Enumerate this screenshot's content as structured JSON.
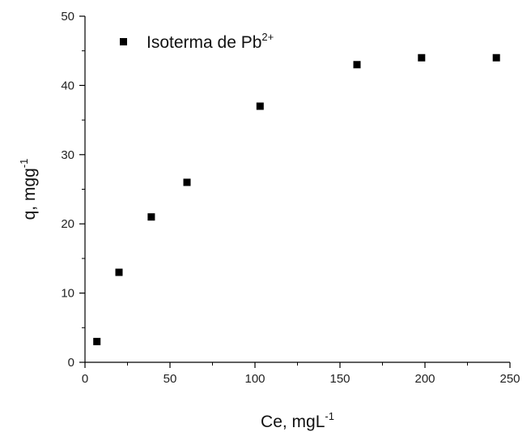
{
  "chart_data": {
    "type": "scatter",
    "series": [
      {
        "name": "Isoterma de Pb",
        "name_superscript": "2+",
        "marker": "square",
        "color": "#000000",
        "points": [
          {
            "x": 7,
            "y": 3
          },
          {
            "x": 20,
            "y": 13
          },
          {
            "x": 39,
            "y": 21
          },
          {
            "x": 60,
            "y": 26
          },
          {
            "x": 103,
            "y": 37
          },
          {
            "x": 160,
            "y": 43
          },
          {
            "x": 198,
            "y": 44
          },
          {
            "x": 242,
            "y": 44
          }
        ]
      }
    ],
    "xlabel": "Ce, mgL",
    "xlabel_superscript": "-1",
    "ylabel": "q, mgg",
    "ylabel_superscript": "-1",
    "xlim": [
      0,
      250
    ],
    "ylim": [
      0,
      50
    ],
    "xticks": [
      0,
      50,
      100,
      150,
      200,
      250
    ],
    "yticks": [
      0,
      10,
      20,
      30,
      40,
      50
    ],
    "x_minor_step": 25,
    "y_minor_step": 5,
    "grid": false,
    "legend_position": "top-left"
  }
}
